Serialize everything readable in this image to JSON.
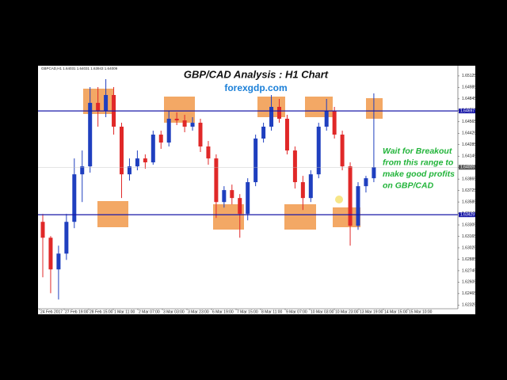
{
  "chart_data": {
    "type": "candlestick",
    "title": "GBP/CAD Analysis : H1 Chart",
    "subtitle": "forexgdp.com",
    "symbol_header": "GBPCAD,H1  1.64031 1.64031 1.63943 1.64009",
    "annotation": [
      "Wait for Breakout",
      "from this range to",
      "make good profits",
      "on GBP/CAD"
    ],
    "time_labels": [
      "24 Feb 2017",
      "27 Feb 19:00",
      "28 Feb 15:00",
      "1 Mar 11:00",
      "2 Mar 07:00",
      "3 Mar 03:00",
      "3 Mar 23:00",
      "6 Mar 19:00",
      "7 Mar 15:00",
      "8 Mar 11:00",
      "9 Mar 07:00",
      "10 Mar 03:00",
      "10 Mar 23:00",
      "13 Mar 19:00",
      "14 Mar 15:00",
      "15 Mar 10:00"
    ],
    "open": [
      1.63342,
      1.63148,
      1.62761,
      1.62954,
      1.63342,
      1.63923,
      1.6402,
      1.64796,
      1.64699,
      1.64892,
      1.64505,
      1.63923,
      1.6402,
      1.64117,
      1.64069,
      1.64408,
      1.64311,
      1.64602,
      1.64582,
      1.64505,
      1.64553,
      1.64263,
      1.64117,
      1.63584,
      1.6373,
      1.63633,
      1.63439,
      1.63827,
      1.6436,
      1.64505,
      1.64747,
      1.64602,
      1.64214,
      1.63827,
      1.63633,
      1.63923,
      1.64505,
      1.64699,
      1.64408,
      1.6402,
      1.63294,
      1.63778,
      1.63875
    ],
    "high": [
      1.63439,
      1.63168,
      1.63051,
      1.63439,
      1.64117,
      1.64214,
      1.64989,
      1.64989,
      1.65086,
      1.64989,
      1.64553,
      1.64117,
      1.64214,
      1.64166,
      1.64456,
      1.64456,
      1.64699,
      1.64679,
      1.6465,
      1.64621,
      1.64602,
      1.6433,
      1.64166,
      1.63778,
      1.63797,
      1.63681,
      1.63875,
      1.64408,
      1.64553,
      1.64892,
      1.64844,
      1.6465,
      1.64263,
      1.63904,
      1.63972,
      1.64553,
      1.64844,
      1.64747,
      1.64456,
      1.64069,
      1.63827,
      1.63904,
      1.64912
    ],
    "low": [
      1.62664,
      1.6247,
      1.62393,
      1.62877,
      1.63265,
      1.63584,
      1.63943,
      1.64505,
      1.64621,
      1.64408,
      1.63633,
      1.63846,
      1.63972,
      1.63991,
      1.6404,
      1.64234,
      1.64263,
      1.64524,
      1.64437,
      1.64456,
      1.64195,
      1.6404,
      1.6339,
      1.63516,
      1.63555,
      1.63148,
      1.63361,
      1.63778,
      1.64311,
      1.64456,
      1.64553,
      1.64166,
      1.63749,
      1.63487,
      1.63584,
      1.63875,
      1.64456,
      1.6436,
      1.63972,
      1.63051,
      1.63245,
      1.63701,
      1.63827
    ],
    "close": [
      1.63148,
      1.62761,
      1.62954,
      1.63342,
      1.63923,
      1.6402,
      1.64796,
      1.64699,
      1.64892,
      1.64505,
      1.63923,
      1.6402,
      1.64117,
      1.64069,
      1.64408,
      1.64311,
      1.64602,
      1.64582,
      1.64505,
      1.64553,
      1.64263,
      1.64117,
      1.63584,
      1.6373,
      1.63633,
      1.63439,
      1.63827,
      1.6436,
      1.64505,
      1.64747,
      1.64602,
      1.64214,
      1.63827,
      1.63633,
      1.63923,
      1.64505,
      1.64699,
      1.64408,
      1.6402,
      1.63294,
      1.63778,
      1.63875,
      1.64009
    ],
    "up_color": "#1f3fbf",
    "down_color": "#e02828",
    "ylim": [
      1.6228,
      1.6525
    ],
    "yticks": [
      1.65125,
      1.64985,
      1.64845,
      1.64705,
      1.64565,
      1.64425,
      1.64285,
      1.64145,
      1.64005,
      1.63865,
      1.63725,
      1.63585,
      1.63445,
      1.63305,
      1.63165,
      1.63025,
      1.62885,
      1.62745,
      1.62605,
      1.62465,
      1.62325
    ],
    "hlines": [
      {
        "value": 1.64697,
        "color": "#1a1aa8"
      },
      {
        "value": 1.63429,
        "color": "#1a1aa8"
      }
    ]
  }
}
